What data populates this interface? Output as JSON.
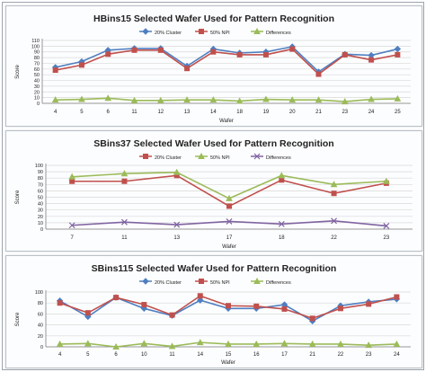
{
  "colors": {
    "series1": "#4f7fc1",
    "series2": "#c0504d",
    "series3": "#9bbb59",
    "grid": "#d9d9d9",
    "axis": "#7f7f7f"
  },
  "chart_data": [
    {
      "type": "line",
      "title": "HBins15 Selected Wafer Used for Pattern Recognition",
      "xlabel": "Wafer",
      "ylabel": "Score",
      "legend_position": "top",
      "grid": true,
      "ylim": [
        0,
        110
      ],
      "yticks": [
        "0",
        "10",
        "20",
        "30",
        "40",
        "50",
        "60",
        "70",
        "80",
        "90",
        "100",
        "110"
      ],
      "categories": [
        "4",
        "5",
        "6",
        "11",
        "12",
        "13",
        "14",
        "18",
        "19",
        "20",
        "21",
        "23",
        "24",
        "25"
      ],
      "series": [
        {
          "name": "20% Cluster",
          "color": "#4f7fc1",
          "marker": "diamond",
          "values": [
            63,
            73,
            93,
            96,
            96,
            65,
            95,
            88,
            90,
            99,
            55,
            86,
            84,
            95
          ]
        },
        {
          "name": "50% NPI",
          "color": "#c0504d",
          "marker": "square",
          "values": [
            58,
            67,
            86,
            93,
            93,
            61,
            90,
            85,
            85,
            95,
            51,
            85,
            76,
            85
          ]
        },
        {
          "name": "Differences",
          "color": "#9bbb59",
          "marker": "triangle",
          "values": [
            6,
            7,
            9,
            5,
            5,
            6,
            6,
            4,
            7,
            6,
            6,
            3,
            7,
            8
          ]
        }
      ]
    },
    {
      "type": "line",
      "title": "SBins37 Selected Wafer Used for Pattern Recognition",
      "xlabel": "Wafer",
      "ylabel": "Score",
      "legend_position": "top",
      "grid": true,
      "ylim": [
        0,
        100
      ],
      "yticks": [
        "0",
        "10",
        "20",
        "30",
        "40",
        "50",
        "60",
        "70",
        "80",
        "90",
        "100"
      ],
      "categories": [
        "7",
        "11",
        "13",
        "17",
        "18",
        "22",
        "23"
      ],
      "series": [
        {
          "name": "20% Cluster",
          "color": "#c0504d",
          "marker": "square",
          "values": [
            75,
            75,
            84,
            36,
            77,
            56,
            72
          ]
        },
        {
          "name": "50% NPI",
          "color": "#9bbb59",
          "marker": "triangle",
          "values": [
            82,
            87,
            89,
            48,
            84,
            70,
            75
          ]
        },
        {
          "name": "Differences",
          "color": "#8064a2",
          "marker": "cross",
          "values": [
            6,
            11,
            7,
            12,
            8,
            13,
            5
          ]
        }
      ]
    },
    {
      "type": "line",
      "title": "SBins115 Selected Wafer Used for Pattern Recognition",
      "xlabel": "Wafer",
      "ylabel": "Score",
      "legend_position": "top",
      "grid": true,
      "ylim": [
        0,
        100
      ],
      "yticks": [
        "0",
        "20",
        "40",
        "60",
        "80",
        "100"
      ],
      "categories": [
        "4",
        "5",
        "6",
        "10",
        "11",
        "14",
        "15",
        "16",
        "17",
        "21",
        "22",
        "23",
        "24"
      ],
      "series": [
        {
          "name": "20% Cluster",
          "color": "#4f7fc1",
          "marker": "diamond",
          "values": [
            84,
            55,
            90,
            70,
            57,
            85,
            70,
            70,
            77,
            47,
            75,
            82,
            87
          ]
        },
        {
          "name": "50% NPI",
          "color": "#c0504d",
          "marker": "square",
          "values": [
            80,
            62,
            90,
            77,
            58,
            93,
            75,
            74,
            69,
            52,
            70,
            78,
            91
          ]
        },
        {
          "name": "Differences",
          "color": "#9bbb59",
          "marker": "triangle",
          "values": [
            5,
            6,
            0,
            6,
            1,
            8,
            5,
            5,
            6,
            5,
            5,
            3,
            5
          ]
        }
      ]
    }
  ]
}
